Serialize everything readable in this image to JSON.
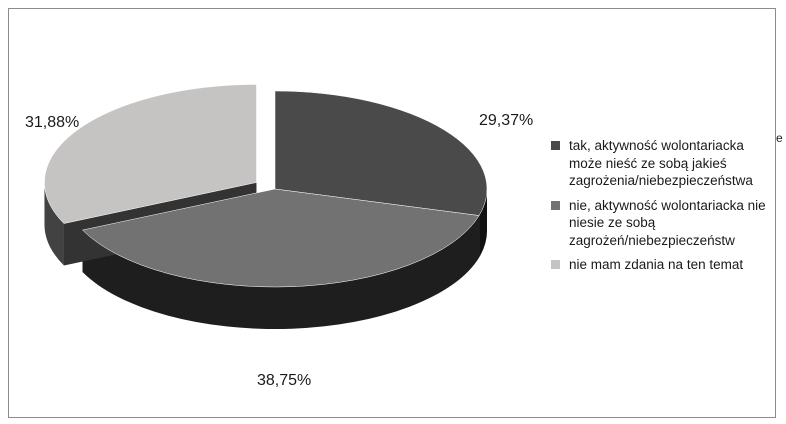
{
  "chart_data": {
    "type": "pie",
    "title": "",
    "slices": [
      {
        "label": "tak, aktywność wolontariacka może nieść ze sobą jakieś zagrożenia/niebezpieczeństwa",
        "value": 29.37,
        "display": "29,37%",
        "color": "#4a4a4a",
        "side_color": "#111111",
        "exploded": false
      },
      {
        "label": "nie, aktywność wolontariacka nie niesie ze sobą zagrożeń/niebezpieczeństw",
        "value": 38.75,
        "display": "38,75%",
        "color": "#727272",
        "side_color": "#1e1e1e",
        "exploded": false
      },
      {
        "label": "nie mam zdania na ten temat",
        "value": 31.88,
        "display": "31,88%",
        "color": "#c6c3c3",
        "side_color": "#424242",
        "exploded": true
      }
    ],
    "legend": {
      "position": "right",
      "stray_mark": "e"
    },
    "style": "3d-exploded"
  }
}
